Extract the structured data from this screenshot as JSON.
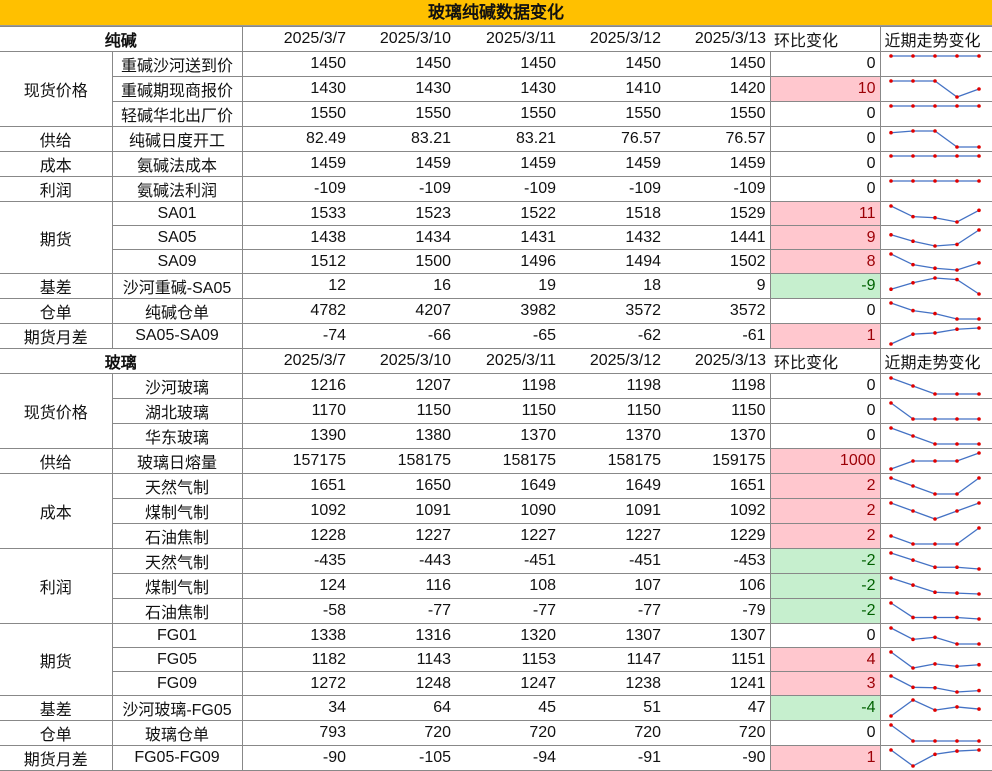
{
  "title": "玻璃纯碱数据变化",
  "colors": {
    "title_bg": "#FFC000",
    "up_bg": "#FFC7CE",
    "up_text": "#9C0006",
    "down_bg": "#C6EFCE",
    "down_text": "#006100",
    "spark_line": "#4472C4",
    "spark_marker": "#E00000"
  },
  "sections": [
    {
      "name": "纯碱",
      "dates": [
        "2025/3/7",
        "2025/3/10",
        "2025/3/11",
        "2025/3/12",
        "2025/3/13"
      ],
      "change_label": "环比变化",
      "trend_label": "近期走势变化",
      "groups": [
        {
          "category": "现货价格",
          "rows": [
            {
              "item": "重碱沙河送到价",
              "values": [
                "1450",
                "1450",
                "1450",
                "1450",
                "1450"
              ],
              "change": "0"
            },
            {
              "item": "重碱期现商报价",
              "values": [
                "1430",
                "1430",
                "1430",
                "1410",
                "1420"
              ],
              "change": "10"
            },
            {
              "item": "轻碱华北出厂价",
              "values": [
                "1550",
                "1550",
                "1550",
                "1550",
                "1550"
              ],
              "change": "0"
            }
          ]
        },
        {
          "category": "供给",
          "rows": [
            {
              "item": "纯碱日度开工",
              "values": [
                "82.49",
                "83.21",
                "83.21",
                "76.57",
                "76.57"
              ],
              "change": "0"
            }
          ]
        },
        {
          "category": "成本",
          "rows": [
            {
              "item": "氨碱法成本",
              "values": [
                "1459",
                "1459",
                "1459",
                "1459",
                "1459"
              ],
              "change": "0"
            }
          ]
        },
        {
          "category": "利润",
          "rows": [
            {
              "item": "氨碱法利润",
              "values": [
                "-109",
                "-109",
                "-109",
                "-109",
                "-109"
              ],
              "change": "0"
            }
          ]
        },
        {
          "category": "期货",
          "rows": [
            {
              "item": "SA01",
              "values": [
                "1533",
                "1523",
                "1522",
                "1518",
                "1529"
              ],
              "change": "11"
            },
            {
              "item": "SA05",
              "values": [
                "1438",
                "1434",
                "1431",
                "1432",
                "1441"
              ],
              "change": "9"
            },
            {
              "item": "SA09",
              "values": [
                "1512",
                "1500",
                "1496",
                "1494",
                "1502"
              ],
              "change": "8"
            }
          ]
        },
        {
          "category": "基差",
          "rows": [
            {
              "item": "沙河重碱-SA05",
              "values": [
                "12",
                "16",
                "19",
                "18",
                "9"
              ],
              "change": "-9"
            }
          ]
        },
        {
          "category": "仓单",
          "rows": [
            {
              "item": "纯碱仓单",
              "values": [
                "4782",
                "4207",
                "3982",
                "3572",
                "3572"
              ],
              "change": "0"
            }
          ]
        },
        {
          "category": "期货月差",
          "rows": [
            {
              "item": "SA05-SA09",
              "values": [
                "-74",
                "-66",
                "-65",
                "-62",
                "-61"
              ],
              "change": "1"
            }
          ]
        }
      ]
    },
    {
      "name": "玻璃",
      "dates": [
        "2025/3/7",
        "2025/3/10",
        "2025/3/11",
        "2025/3/12",
        "2025/3/13"
      ],
      "change_label": "环比变化",
      "trend_label": "近期走势变化",
      "groups": [
        {
          "category": "现货价格",
          "rows": [
            {
              "item": "沙河玻璃",
              "values": [
                "1216",
                "1207",
                "1198",
                "1198",
                "1198"
              ],
              "change": "0"
            },
            {
              "item": "湖北玻璃",
              "values": [
                "1170",
                "1150",
                "1150",
                "1150",
                "1150"
              ],
              "change": "0"
            },
            {
              "item": "华东玻璃",
              "values": [
                "1390",
                "1380",
                "1370",
                "1370",
                "1370"
              ],
              "change": "0"
            }
          ]
        },
        {
          "category": "供给",
          "rows": [
            {
              "item": "玻璃日熔量",
              "values": [
                "157175",
                "158175",
                "158175",
                "158175",
                "159175"
              ],
              "change": "1000"
            }
          ]
        },
        {
          "category": "成本",
          "rows": [
            {
              "item": "天然气制",
              "values": [
                "1651",
                "1650",
                "1649",
                "1649",
                "1651"
              ],
              "change": "2"
            },
            {
              "item": "煤制气制",
              "values": [
                "1092",
                "1091",
                "1090",
                "1091",
                "1092"
              ],
              "change": "2"
            },
            {
              "item": "石油焦制",
              "values": [
                "1228",
                "1227",
                "1227",
                "1227",
                "1229"
              ],
              "change": "2"
            }
          ]
        },
        {
          "category": "利润",
          "rows": [
            {
              "item": "天然气制",
              "values": [
                "-435",
                "-443",
                "-451",
                "-451",
                "-453"
              ],
              "change": "-2"
            },
            {
              "item": "煤制气制",
              "values": [
                "124",
                "116",
                "108",
                "107",
                "106"
              ],
              "change": "-2"
            },
            {
              "item": "石油焦制",
              "values": [
                "-58",
                "-77",
                "-77",
                "-77",
                "-79"
              ],
              "change": "-2"
            }
          ]
        },
        {
          "category": "期货",
          "rows": [
            {
              "item": "FG01",
              "values": [
                "1338",
                "1316",
                "1320",
                "1307",
                "1307"
              ],
              "change": "0"
            },
            {
              "item": "FG05",
              "values": [
                "1182",
                "1143",
                "1153",
                "1147",
                "1151"
              ],
              "change": "4"
            },
            {
              "item": "FG09",
              "values": [
                "1272",
                "1248",
                "1247",
                "1238",
                "1241"
              ],
              "change": "3"
            }
          ]
        },
        {
          "category": "基差",
          "rows": [
            {
              "item": "沙河玻璃-FG05",
              "values": [
                "34",
                "64",
                "45",
                "51",
                "47"
              ],
              "change": "-4"
            }
          ]
        },
        {
          "category": "仓单",
          "rows": [
            {
              "item": "玻璃仓单",
              "values": [
                "793",
                "720",
                "720",
                "720",
                "720"
              ],
              "change": "0"
            }
          ]
        },
        {
          "category": "期货月差",
          "rows": [
            {
              "item": "FG05-FG09",
              "values": [
                "-90",
                "-105",
                "-94",
                "-91",
                "-90"
              ],
              "change": "1"
            }
          ]
        }
      ]
    }
  ]
}
